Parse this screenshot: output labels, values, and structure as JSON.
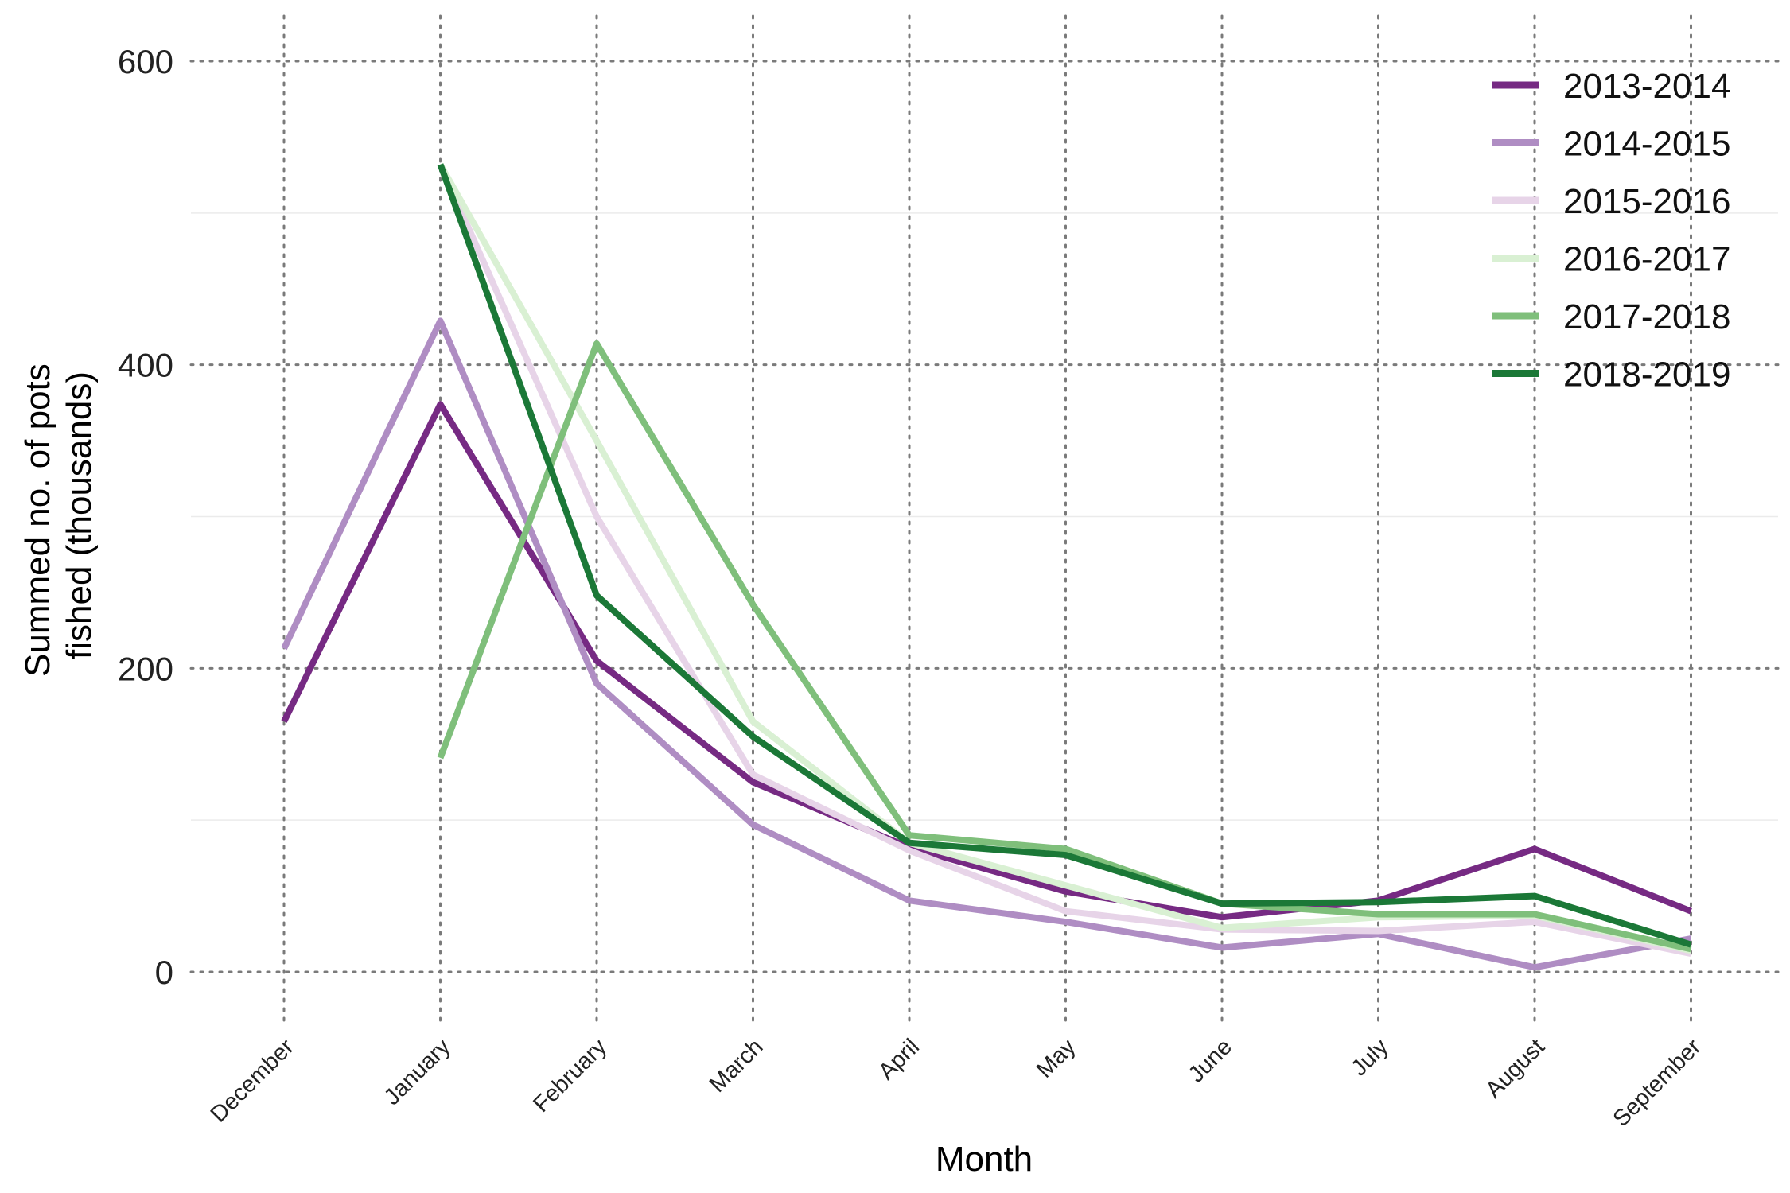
{
  "chart_data": {
    "type": "line",
    "title": "",
    "xlabel": "Month",
    "ylabel": [
      "Summed no. of pots",
      "fished (thousands)"
    ],
    "categories": [
      "December",
      "January",
      "February",
      "March",
      "April",
      "May",
      "June",
      "July",
      "August",
      "September"
    ],
    "y_ticks": [
      0,
      200,
      400,
      600
    ],
    "ylim": [
      -30,
      625
    ],
    "grid": true,
    "legend_position": "top-right",
    "series": [
      {
        "name": "2013-2014",
        "color": "#762a83",
        "values": [
          165,
          374,
          205,
          125,
          82,
          53,
          36,
          47,
          81,
          40
        ]
      },
      {
        "name": "2014-2015",
        "color": "#af8dc3",
        "values": [
          213,
          429,
          190,
          97,
          47,
          33,
          16,
          25,
          3,
          22
        ]
      },
      {
        "name": "2015-2016",
        "color": "#e7d4e8",
        "values": [
          null,
          532,
          300,
          130,
          80,
          40,
          28,
          27,
          33,
          12
        ]
      },
      {
        "name": "2016-2017",
        "color": "#d9f0d3",
        "values": [
          null,
          532,
          350,
          165,
          85,
          57,
          29,
          36,
          37,
          14
        ]
      },
      {
        "name": "2017-2018",
        "color": "#7fbf7b",
        "values": [
          null,
          141,
          414,
          242,
          90,
          81,
          45,
          38,
          38,
          15
        ]
      },
      {
        "name": "2018-2019",
        "color": "#1b7837",
        "values": [
          null,
          532,
          248,
          155,
          85,
          77,
          45,
          46,
          50,
          18
        ]
      }
    ]
  }
}
